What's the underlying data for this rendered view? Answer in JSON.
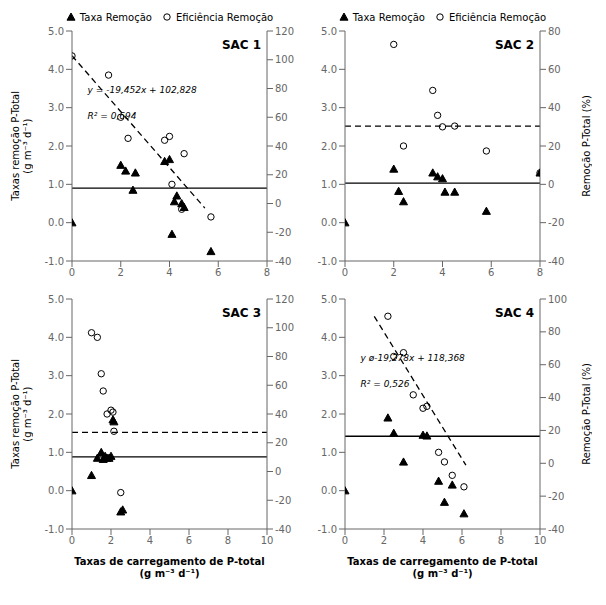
{
  "chart_data": [
    {
      "type": "scatter",
      "title": "SAC 1",
      "legend": "top",
      "grid": false,
      "ylabel": "Taxas remoção P-Total\n(g m⁻³ d⁻¹)",
      "annotations": [
        "y = -19,452x + 102,828",
        "R² = 0,694"
      ],
      "xlim": [
        0,
        8
      ],
      "xticks": [
        0,
        2,
        4,
        6,
        8
      ],
      "ylim": [
        -1.0,
        5.0
      ],
      "yticks": [
        {
          "value": -1.0,
          "label": "-1.0"
        },
        {
          "value": 0.0,
          "label": "0.0"
        },
        {
          "value": 1.0,
          "label": "1.0"
        },
        {
          "value": 2.0,
          "label": "2.0"
        },
        {
          "value": 3.0,
          "label": "3.0"
        },
        {
          "value": 4.0,
          "label": "4.0"
        },
        {
          "value": 5.0,
          "label": "5.0"
        }
      ],
      "y2lim": [
        -40,
        120
      ],
      "y2ticks": [
        -40,
        -20,
        0,
        20,
        40,
        60,
        80,
        100,
        120
      ],
      "series": [
        {
          "name": "Taxa Remoção",
          "type": "scatter",
          "marker": "triangle",
          "color": "#000000",
          "x": [
            0.0,
            2.0,
            2.2,
            2.5,
            2.6,
            3.8,
            4.0,
            4.1,
            4.2,
            4.3,
            4.5,
            4.6,
            5.7
          ],
          "values": [
            0.0,
            1.5,
            1.35,
            0.85,
            1.3,
            1.6,
            1.65,
            -0.3,
            0.55,
            0.7,
            0.5,
            0.4,
            -0.75
          ]
        },
        {
          "name": "Eficiência Remoção",
          "type": "scatter",
          "marker": "open_circle",
          "color": "#000000",
          "x": [
            0.0,
            1.5,
            2.0,
            2.3,
            3.8,
            4.0,
            4.1,
            4.5,
            4.6,
            5.7
          ],
          "values": [
            4.35,
            3.85,
            2.75,
            2.2,
            2.15,
            2.25,
            1.0,
            0.35,
            1.8,
            0.15
          ]
        },
        {
          "type": "line",
          "line_style": "solid",
          "color": "#000000",
          "x": [
            0,
            8
          ],
          "values": [
            0.9,
            0.9
          ]
        },
        {
          "type": "line",
          "line_style": "dashed",
          "color": "#000000",
          "axis": "y2",
          "x": [
            0.0,
            5.45
          ],
          "values": [
            102.828,
            -3.1854
          ]
        }
      ]
    },
    {
      "type": "scatter",
      "title": "SAC 2",
      "legend": "top",
      "grid": false,
      "y2label": "Remoção P-Total (%)",
      "xlim": [
        0,
        8
      ],
      "xticks": [
        0,
        2,
        4,
        6,
        8
      ],
      "ylim": [
        -1.0,
        5.0
      ],
      "yticks": [
        {
          "value": -1.0,
          "label": "-1.0"
        },
        {
          "value": 0.0,
          "label": "0.0"
        },
        {
          "value": 1.0,
          "label": "1.0"
        },
        {
          "value": 2.0,
          "label": "2.0"
        },
        {
          "value": 3.0,
          "label": "3.0"
        },
        {
          "value": 4.0,
          "label": "4.0"
        },
        {
          "value": 5.0,
          "label": "5.0"
        }
      ],
      "y2lim": [
        -40,
        80
      ],
      "y2ticks": [
        -40,
        -20,
        0,
        20,
        40,
        60,
        80
      ],
      "series": [
        {
          "name": "Taxa Remoção",
          "type": "scatter",
          "marker": "triangle",
          "color": "#000000",
          "x": [
            0.0,
            2.0,
            2.2,
            2.4,
            3.6,
            3.8,
            4.0,
            4.1,
            4.5,
            5.8,
            8.0
          ],
          "values": [
            0.0,
            1.4,
            0.82,
            0.55,
            1.3,
            1.2,
            1.15,
            0.8,
            0.8,
            0.3,
            1.3
          ]
        },
        {
          "name": "Eficiência Remoção",
          "type": "scatter",
          "marker": "open_circle",
          "color": "#000000",
          "x": [
            2.0,
            2.4,
            3.6,
            3.8,
            4.0,
            4.5,
            5.8,
            8.0
          ],
          "values": [
            4.65,
            2.0,
            3.45,
            2.8,
            2.5,
            2.52,
            1.87,
            1.3
          ]
        },
        {
          "type": "line",
          "line_style": "solid",
          "color": "#000000",
          "x": [
            0,
            8
          ],
          "values": [
            1.03,
            1.03
          ]
        },
        {
          "type": "line",
          "line_style": "dashed",
          "color": "#000000",
          "x": [
            0,
            8
          ],
          "values": [
            2.52,
            2.52
          ]
        }
      ]
    },
    {
      "type": "scatter",
      "title": "SAC 3",
      "grid": false,
      "ylabel": "Taxas remoção P-Total\n(g m⁻³ d⁻¹)",
      "xlabel": "Taxas de carregamento de P-total\n(g m⁻³ d⁻¹)",
      "xlim": [
        0,
        10
      ],
      "xticks": [
        0,
        2,
        4,
        6,
        8,
        10
      ],
      "ylim": [
        -1.0,
        5.0
      ],
      "yticks": [
        {
          "value": -1.0,
          "label": "-1.0"
        },
        {
          "value": 0.0,
          "label": "0.0"
        },
        {
          "value": 1.0,
          "label": "1.0"
        },
        {
          "value": 2.0,
          "label": "2.0"
        },
        {
          "value": 3.0,
          "label": "3.0"
        },
        {
          "value": 4.0,
          "label": "4.0"
        },
        {
          "value": 5.0,
          "label": "5.0"
        }
      ],
      "y2lim": [
        -40,
        120
      ],
      "y2ticks": [
        -40,
        -20,
        0,
        20,
        40,
        60,
        80,
        100,
        120
      ],
      "series": [
        {
          "name": "Taxa Remoção",
          "type": "scatter",
          "marker": "triangle",
          "color": "#000000",
          "x": [
            0.0,
            1.0,
            1.3,
            1.5,
            1.6,
            1.7,
            1.8,
            1.9,
            2.0,
            2.1,
            2.15,
            2.5,
            2.6
          ],
          "values": [
            0.0,
            0.4,
            0.85,
            1.0,
            0.82,
            0.9,
            0.85,
            0.85,
            0.9,
            1.85,
            1.8,
            -0.55,
            -0.5
          ]
        },
        {
          "name": "Eficiência Remoção",
          "type": "scatter",
          "marker": "open_circle",
          "color": "#000000",
          "x": [
            1.0,
            1.3,
            1.5,
            1.6,
            1.8,
            2.0,
            2.1,
            2.15,
            2.5
          ],
          "values": [
            4.12,
            4.0,
            3.05,
            2.6,
            2.0,
            2.1,
            2.05,
            1.55,
            -0.05
          ]
        },
        {
          "type": "line",
          "line_style": "solid",
          "color": "#000000",
          "x": [
            0,
            10
          ],
          "values": [
            0.88,
            0.88
          ]
        },
        {
          "type": "line",
          "line_style": "dashed",
          "color": "#000000",
          "x": [
            0,
            10
          ],
          "values": [
            1.52,
            1.52
          ]
        }
      ]
    },
    {
      "type": "scatter",
      "title": "SAC 4",
      "grid": false,
      "y2label": "Remoção P-Total (%)",
      "xlabel": "Taxas de carregamento de P-total\n(g m⁻³ d⁻¹)",
      "annotations": [
        "y ø-19,278x + 118,368",
        "R² = 0,526"
      ],
      "xlim": [
        0,
        10
      ],
      "xticks": [
        0,
        2,
        4,
        6,
        8,
        10
      ],
      "ylim": [
        -1.0,
        5.0
      ],
      "yticks": [
        {
          "value": -1.0,
          "label": "-1.0"
        },
        {
          "value": 0.0,
          "label": "0.0"
        },
        {
          "value": 1.0,
          "label": "1.0"
        },
        {
          "value": 2.0,
          "label": "2.0"
        },
        {
          "value": 3.0,
          "label": "3.0"
        },
        {
          "value": 4.0,
          "label": "4.0"
        },
        {
          "value": 5.0,
          "label": "5.0"
        }
      ],
      "y2lim": [
        -40,
        100
      ],
      "y2ticks": [
        -40,
        -20,
        0,
        20,
        40,
        60,
        80,
        100
      ],
      "series": [
        {
          "name": "Taxa Remoção",
          "type": "scatter",
          "marker": "triangle",
          "color": "#000000",
          "x": [
            0.0,
            2.2,
            2.5,
            3.0,
            4.0,
            4.2,
            4.8,
            5.1,
            5.5,
            6.1
          ],
          "values": [
            0.0,
            1.9,
            1.5,
            0.75,
            1.45,
            1.43,
            0.25,
            -0.3,
            0.15,
            -0.6
          ]
        },
        {
          "name": "Eficiência Remoção",
          "type": "scatter",
          "marker": "open_circle",
          "color": "#000000",
          "x": [
            2.2,
            2.5,
            3.0,
            3.5,
            4.0,
            4.2,
            4.8,
            5.1,
            5.5,
            6.1
          ],
          "values": [
            4.55,
            3.5,
            3.6,
            2.5,
            2.15,
            2.2,
            1.0,
            0.75,
            0.4,
            0.1
          ]
        },
        {
          "type": "line",
          "line_style": "solid",
          "color": "#000000",
          "x": [
            0,
            10
          ],
          "values": [
            1.42,
            1.42
          ]
        },
        {
          "type": "line",
          "line_style": "dashed",
          "color": "#000000",
          "axis": "y2",
          "x": [
            1.5,
            6.2
          ],
          "values": [
            89.451,
            -1.1556
          ]
        }
      ]
    }
  ]
}
